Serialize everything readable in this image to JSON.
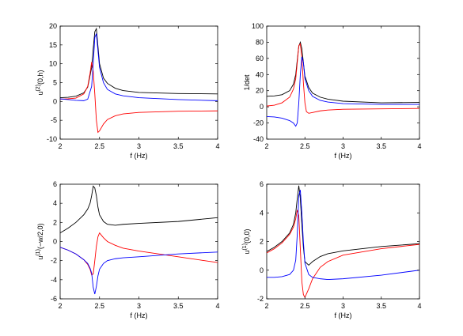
{
  "colors": {
    "black": "#000000",
    "red": "#ff0000",
    "blue": "#0000ff"
  },
  "chart_data": [
    {
      "type": "line",
      "xlabel": "f (Hz)",
      "ylabel": "u",
      "ylabel_sup": "(2)",
      "ylabel_rest": "(0,h)",
      "xlim": [
        2,
        4
      ],
      "ylim": [
        -10,
        20
      ],
      "xticks": [
        "2",
        "2.5",
        "3",
        "3.5",
        "4"
      ],
      "yticks": [
        "-10",
        "-5",
        "0",
        "5",
        "10",
        "15",
        "20"
      ],
      "series": [
        {
          "color": "#000000",
          "x": [
            2,
            2.1,
            2.2,
            2.3,
            2.35,
            2.4,
            2.42,
            2.44,
            2.46,
            2.5,
            2.55,
            2.6,
            2.7,
            2.8,
            3,
            3.5,
            4
          ],
          "y": [
            1,
            1.1,
            1.4,
            2.3,
            3.8,
            9,
            14,
            18.5,
            19.3,
            10,
            6.2,
            4.8,
            3.5,
            2.9,
            2.4,
            2.1,
            2.0
          ]
        },
        {
          "color": "#ff0000",
          "x": [
            2,
            2.1,
            2.2,
            2.3,
            2.35,
            2.38,
            2.4,
            2.42,
            2.44,
            2.46,
            2.48,
            2.5,
            2.55,
            2.6,
            2.7,
            2.8,
            3,
            3.5,
            4
          ],
          "y": [
            0.6,
            0.7,
            0.9,
            2,
            4,
            7.5,
            10.5,
            8,
            2,
            -5,
            -8.2,
            -7.8,
            -6,
            -4.8,
            -3.8,
            -3.3,
            -2.9,
            -2.6,
            -2.5
          ]
        },
        {
          "color": "#0000ff",
          "x": [
            2,
            2.1,
            2.2,
            2.3,
            2.35,
            2.4,
            2.42,
            2.44,
            2.46,
            2.5,
            2.55,
            2.6,
            2.7,
            2.8,
            3,
            3.5,
            4
          ],
          "y": [
            0.7,
            0.5,
            0.3,
            0.2,
            0.6,
            4,
            10,
            17,
            18,
            9,
            5,
            3.2,
            2,
            1.5,
            1,
            0.5,
            0.2
          ]
        }
      ]
    },
    {
      "type": "line",
      "xlabel": "f (Hz)",
      "ylabel": "1/det",
      "ylabel_sup": "",
      "ylabel_rest": "",
      "xlim": [
        2,
        4
      ],
      "ylim": [
        -40,
        100
      ],
      "xticks": [
        "2",
        "2.5",
        "3",
        "3.5",
        "4"
      ],
      "yticks": [
        "-40",
        "-20",
        "0",
        "20",
        "40",
        "60",
        "80",
        "100"
      ],
      "series": [
        {
          "color": "#000000",
          "x": [
            2,
            2.1,
            2.2,
            2.3,
            2.35,
            2.38,
            2.4,
            2.42,
            2.44,
            2.46,
            2.48,
            2.5,
            2.55,
            2.6,
            2.7,
            2.8,
            3,
            3.5,
            4
          ],
          "y": [
            13,
            13.5,
            15,
            20,
            28,
            40,
            58,
            75,
            80,
            72,
            55,
            38,
            24,
            17,
            12,
            9.5,
            7,
            5,
            5.5
          ]
        },
        {
          "color": "#ff0000",
          "x": [
            2,
            2.1,
            2.2,
            2.3,
            2.35,
            2.38,
            2.4,
            2.42,
            2.44,
            2.46,
            2.48,
            2.5,
            2.52,
            2.55,
            2.6,
            2.7,
            2.8,
            3,
            3.5,
            4
          ],
          "y": [
            1,
            2,
            5,
            12,
            22,
            35,
            55,
            76,
            78,
            60,
            30,
            5,
            -6,
            -8,
            -7,
            -5,
            -4,
            -3,
            -2.5,
            -2
          ]
        },
        {
          "color": "#0000ff",
          "x": [
            2,
            2.1,
            2.2,
            2.3,
            2.35,
            2.38,
            2.4,
            2.42,
            2.44,
            2.46,
            2.48,
            2.5,
            2.55,
            2.6,
            2.7,
            2.8,
            3,
            3.5,
            4
          ],
          "y": [
            -12,
            -12.5,
            -14,
            -17,
            -20,
            -24,
            -20,
            5,
            40,
            62,
            55,
            35,
            20,
            13,
            8,
            6,
            4,
            3,
            3
          ]
        }
      ]
    },
    {
      "type": "line",
      "xlabel": "f (Hz)",
      "ylabel": "u",
      "ylabel_sup": "(1)",
      "ylabel_rest": "(−w/2,0)",
      "xlim": [
        2,
        4
      ],
      "ylim": [
        -6,
        6
      ],
      "xticks": [
        "2",
        "2.5",
        "3",
        "3.5",
        "4"
      ],
      "yticks": [
        "-6",
        "-4",
        "-2",
        "0",
        "2",
        "4",
        "6"
      ],
      "series": [
        {
          "color": "#000000",
          "x": [
            2,
            2.1,
            2.2,
            2.3,
            2.35,
            2.38,
            2.4,
            2.42,
            2.44,
            2.46,
            2.48,
            2.5,
            2.55,
            2.6,
            2.7,
            2.8,
            3,
            3.5,
            4
          ],
          "y": [
            0.9,
            1.4,
            2,
            2.8,
            3.4,
            4,
            4.8,
            5.8,
            5.6,
            4.8,
            3.6,
            2.8,
            2.1,
            1.8,
            1.7,
            1.8,
            1.9,
            2.1,
            2.5
          ]
        },
        {
          "color": "#ff0000",
          "x": [
            2,
            2.1,
            2.2,
            2.3,
            2.35,
            2.38,
            2.4,
            2.42,
            2.44,
            2.46,
            2.48,
            2.5,
            2.52,
            2.55,
            2.6,
            2.7,
            2.8,
            3,
            3.5,
            4
          ],
          "y": [
            -0.6,
            -0.9,
            -1.3,
            -1.9,
            -2.4,
            -2.9,
            -3.5,
            -3.4,
            -2,
            -0.5,
            0.5,
            0.9,
            0.7,
            0.4,
            0,
            -0.4,
            -0.7,
            -1,
            -1.6,
            -2.2
          ]
        },
        {
          "color": "#0000ff",
          "x": [
            2,
            2.1,
            2.2,
            2.3,
            2.35,
            2.38,
            2.4,
            2.42,
            2.44,
            2.46,
            2.48,
            2.5,
            2.55,
            2.6,
            2.7,
            2.8,
            3,
            3.5,
            4
          ],
          "y": [
            -0.6,
            -0.9,
            -1.3,
            -1.9,
            -2.3,
            -2.8,
            -3.3,
            -4.8,
            -5.5,
            -4.7,
            -3.6,
            -2.9,
            -2.3,
            -2,
            -1.8,
            -1.7,
            -1.6,
            -1.3,
            -1.1
          ]
        }
      ]
    },
    {
      "type": "line",
      "xlabel": "f (Hz)",
      "ylabel": "u",
      "ylabel_sup": "(1)",
      "ylabel_rest": "(0,0)",
      "xlim": [
        2,
        4
      ],
      "ylim": [
        -2,
        6
      ],
      "xticks": [
        "2",
        "2.5",
        "3",
        "3.5",
        "4"
      ],
      "yticks": [
        "-2",
        "0",
        "2",
        "4",
        "6"
      ],
      "series": [
        {
          "color": "#000000",
          "x": [
            2,
            2.1,
            2.2,
            2.3,
            2.35,
            2.38,
            2.4,
            2.42,
            2.44,
            2.46,
            2.48,
            2.5,
            2.55,
            2.6,
            2.7,
            2.8,
            3,
            3.5,
            4
          ],
          "y": [
            1.3,
            1.6,
            2,
            2.6,
            3.2,
            4,
            5,
            5.9,
            5,
            3.2,
            1.6,
            0.6,
            0.35,
            0.6,
            0.95,
            1.15,
            1.35,
            1.65,
            1.85
          ]
        },
        {
          "color": "#ff0000",
          "x": [
            2,
            2.1,
            2.2,
            2.3,
            2.35,
            2.38,
            2.4,
            2.42,
            2.44,
            2.46,
            2.48,
            2.5,
            2.55,
            2.6,
            2.7,
            2.8,
            3,
            3.5,
            4
          ],
          "y": [
            1.2,
            1.5,
            1.9,
            2.5,
            3,
            3.6,
            4.2,
            3.8,
            1.5,
            -0.8,
            -1.7,
            -1.9,
            -1.3,
            -0.6,
            0.2,
            0.6,
            1.05,
            1.5,
            1.8
          ]
        },
        {
          "color": "#0000ff",
          "x": [
            2,
            2.1,
            2.2,
            2.3,
            2.35,
            2.38,
            2.4,
            2.42,
            2.44,
            2.46,
            2.48,
            2.5,
            2.55,
            2.6,
            2.7,
            2.8,
            3,
            3.5,
            4
          ],
          "y": [
            -0.5,
            -0.5,
            -0.45,
            -0.3,
            0,
            0.7,
            2.5,
            5.2,
            5.6,
            4,
            2,
            0.5,
            -0.3,
            -0.5,
            -0.6,
            -0.65,
            -0.6,
            -0.35,
            0
          ]
        }
      ]
    }
  ]
}
